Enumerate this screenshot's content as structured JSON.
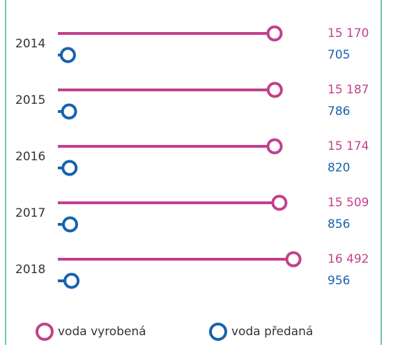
{
  "chart_data": {
    "type": "lollipop",
    "categories": [
      "2014",
      "2015",
      "2016",
      "2017",
      "2018"
    ],
    "series": [
      {
        "name": "voda vyrobená",
        "color": "#c2408b",
        "values": [
          15170,
          15187,
          15174,
          15509,
          16492
        ],
        "value_labels": [
          "15 170",
          "15 187",
          "15 174",
          "15 509",
          "16 492"
        ]
      },
      {
        "name": "voda předaná",
        "color": "#1762ad",
        "values": [
          705,
          786,
          820,
          856,
          956
        ],
        "value_labels": [
          "705",
          "786",
          "820",
          "856",
          "956"
        ]
      }
    ]
  }
}
